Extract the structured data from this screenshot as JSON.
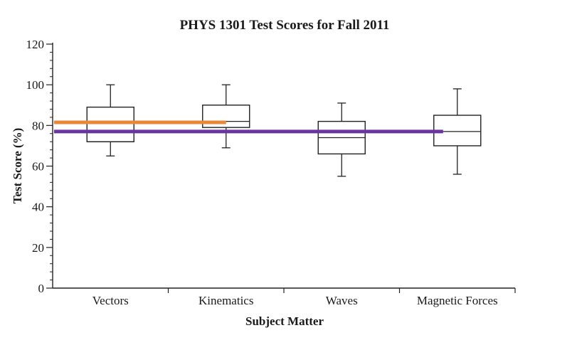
{
  "chart_data": {
    "type": "box",
    "title": "PHYS 1301 Test Scores for Fall 2011",
    "xlabel": "Subject Matter",
    "ylabel": "Test Score (%)",
    "ylim": [
      0,
      120
    ],
    "yticks": [
      0,
      20,
      40,
      60,
      80,
      100,
      120
    ],
    "y_minor_step": 4,
    "grid": false,
    "categories": [
      "Vectors",
      "Kinematics",
      "Waves",
      "Magnetic Forces"
    ],
    "boxes": [
      {
        "category": "Vectors",
        "min": 65,
        "q1": 72,
        "median": 72,
        "q3": 89,
        "max": 100
      },
      {
        "category": "Kinematics",
        "min": 69,
        "q1": 79,
        "median": 82,
        "q3": 90,
        "max": 100
      },
      {
        "category": "Waves",
        "min": 55,
        "q1": 66,
        "median": 74,
        "q3": 82,
        "max": 91
      },
      {
        "category": "Magnetic Forces",
        "min": 56,
        "q1": 70,
        "median": 77,
        "q3": 85,
        "max": 98
      }
    ],
    "reference_lines": [
      {
        "value": 81.5,
        "color": "#e8883a",
        "from_category": "Vectors",
        "to_category": "Kinematics"
      },
      {
        "value": 77,
        "color": "#6a35a0",
        "from_category": "Vectors",
        "to_category": "Magnetic Forces"
      }
    ]
  }
}
